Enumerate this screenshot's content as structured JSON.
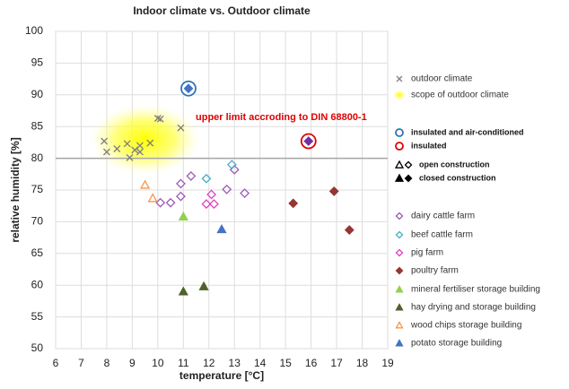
{
  "chart_data": {
    "type": "scatter",
    "title": "Indoor climate vs. Outdoor climate",
    "x_label": "temperature [°C]",
    "y_label": "relative humidity [%]",
    "xlim": [
      6,
      19
    ],
    "xticks": [
      6,
      7,
      8,
      9,
      10,
      11,
      12,
      13,
      14,
      15,
      16,
      17,
      18,
      19
    ],
    "ylim": [
      50,
      100
    ],
    "yticks": [
      50,
      55,
      60,
      65,
      70,
      75,
      80,
      85,
      90,
      95,
      100
    ],
    "grid": true,
    "upper_limit": {
      "value": 80,
      "label": "upper limit accroding to DIN 68800-1",
      "color": "#e00000"
    },
    "scope": {
      "name": "scope of outdoor climate",
      "color": "#ffff00",
      "xlim": [
        8,
        11
      ],
      "ylim": [
        79.5,
        86.5
      ]
    },
    "construction": [
      {
        "label": "open construction",
        "filled": false
      },
      {
        "label": "closed construction",
        "filled": true
      }
    ],
    "series": [
      {
        "name": "outdoor climate",
        "color": "#7f7f7f",
        "marker": "x",
        "filled": false,
        "x": [
          7.9,
          8.0,
          8.4,
          8.8,
          8.9,
          9.1,
          9.3,
          9.3,
          9.7,
          10.0,
          10.1,
          10.9
        ],
        "values": [
          82.7,
          81.0,
          81.5,
          82.3,
          80.1,
          81.3,
          81.0,
          82.0,
          82.4,
          86.3,
          86.2,
          84.8
        ]
      },
      {
        "name": "insulated and air-conditioned",
        "color": "#2e75b6",
        "inner_color": "#4472c4",
        "marker": "circle",
        "filled": false,
        "x": [
          11.2
        ],
        "values": [
          91
        ]
      },
      {
        "name": "insulated",
        "color": "#e00000",
        "inner_color": "#7030a0",
        "marker": "circle",
        "filled": false,
        "x": [
          15.9
        ],
        "values": [
          82.7
        ]
      },
      {
        "name": "dairy cattle farm",
        "color": "#9b59b6",
        "marker": "diamond",
        "filled": false,
        "x": [
          10.1,
          10.5,
          10.9,
          10.9,
          11.3,
          12.7,
          13.0,
          13.4
        ],
        "values": [
          73.0,
          73.0,
          74.0,
          76.0,
          77.2,
          75.1,
          78.2,
          74.5
        ]
      },
      {
        "name": "beef cattle farm",
        "color": "#4bacc6",
        "marker": "diamond",
        "filled": false,
        "x": [
          11.9,
          12.9
        ],
        "values": [
          76.8,
          79.0
        ]
      },
      {
        "name": "pig farm",
        "color": "#e040c0",
        "marker": "diamond",
        "filled": false,
        "x": [
          12.1,
          11.9,
          12.2
        ],
        "values": [
          74.3,
          72.8,
          72.8
        ]
      },
      {
        "name": "poultry farm",
        "color": "#943634",
        "marker": "diamond",
        "filled": true,
        "x": [
          15.3,
          16.9,
          17.5
        ],
        "values": [
          72.9,
          74.8,
          68.7
        ]
      },
      {
        "name": "mineral fertiliser storage building",
        "color": "#92d050",
        "marker": "triangle",
        "filled": true,
        "x": [
          11.0
        ],
        "values": [
          70.8
        ]
      },
      {
        "name": "hay drying and storage building",
        "color": "#4f6228",
        "marker": "triangle",
        "filled": true,
        "x": [
          11.0,
          11.8
        ],
        "values": [
          59.0,
          59.8
        ]
      },
      {
        "name": "wood chips storage building",
        "color": "#f79646",
        "marker": "triangle",
        "filled": false,
        "x": [
          9.5,
          9.8
        ],
        "values": [
          75.8,
          73.7
        ]
      },
      {
        "name": "potato storage building",
        "color": "#4472c4",
        "marker": "triangle",
        "filled": true,
        "x": [
          12.5
        ],
        "values": [
          68.8
        ]
      }
    ]
  }
}
